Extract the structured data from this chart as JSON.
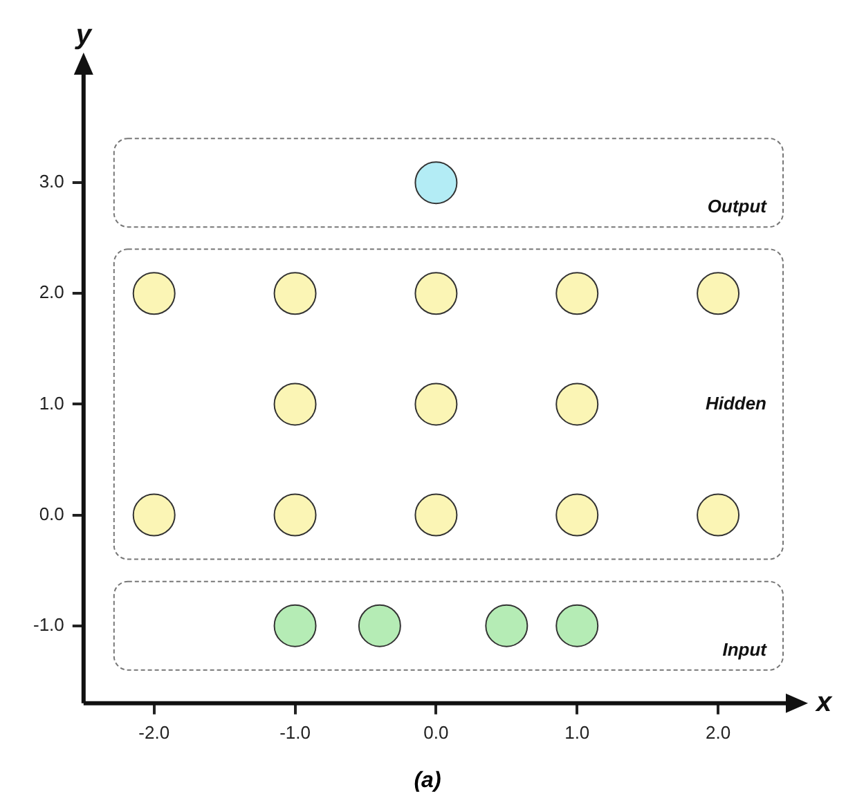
{
  "chart_data": {
    "type": "scatter",
    "xlabel": "x",
    "ylabel": "y",
    "xlim": [
      -2.5,
      2.5
    ],
    "ylim": [
      -1.7,
      4
    ],
    "xticks": [
      {
        "value": -2,
        "label": "-2.0"
      },
      {
        "value": -1,
        "label": "-1.0"
      },
      {
        "value": 0,
        "label": "0.0"
      },
      {
        "value": 1,
        "label": "1.0"
      },
      {
        "value": 2,
        "label": "2.0"
      }
    ],
    "yticks": [
      {
        "value": -1,
        "label": "-1.0"
      },
      {
        "value": 0,
        "label": "0.0"
      },
      {
        "value": 1,
        "label": "1.0"
      },
      {
        "value": 2,
        "label": "2.0"
      },
      {
        "value": 3,
        "label": "3.0"
      }
    ],
    "grid": false,
    "legend": false,
    "marker": "circle",
    "series": [
      {
        "color": "#b3ecf5",
        "x": [
          0
        ],
        "values": [
          3
        ]
      },
      {
        "color": "#fbf5b5",
        "x": [
          -2,
          -1,
          0,
          1,
          2,
          -1,
          0,
          1,
          -2,
          -1,
          0,
          1,
          2
        ],
        "values": [
          2,
          2,
          2,
          2,
          2,
          1,
          1,
          1,
          0,
          0,
          0,
          0,
          0
        ]
      },
      {
        "color": "#b5ecb5",
        "x": [
          -1,
          -0.4,
          0.5,
          1
        ],
        "values": [
          -1,
          -1,
          -1,
          -1
        ]
      }
    ],
    "annotations": [
      "Output",
      "Hidden",
      "Input",
      "(a)"
    ]
  }
}
